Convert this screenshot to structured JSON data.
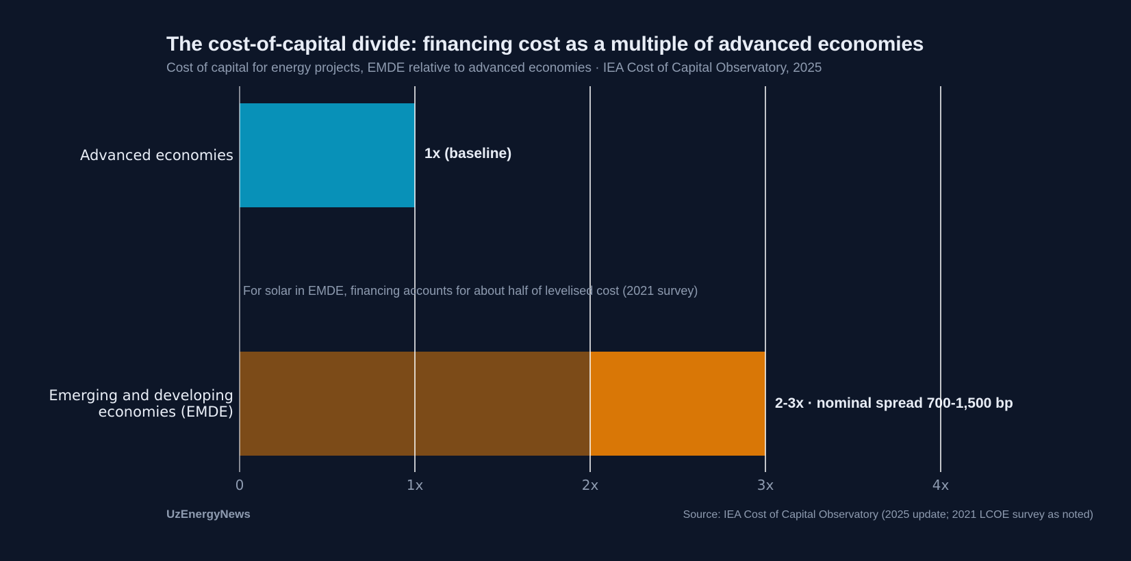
{
  "colors": {
    "background": "#0d1628",
    "advanced_bar": "#0891b8",
    "emde_low_bar": "#7c4b18",
    "emde_high_bar": "#d97706",
    "grid": "#ffffff",
    "text_primary": "#e8edf6",
    "text_muted": "#8e9bb0"
  },
  "footer": {
    "brand": "UzEnergyNews",
    "source": "Source: IEA Cost of Capital Observatory (2025 update; 2021 LCOE survey as noted)"
  },
  "chart_data": {
    "type": "bar",
    "orientation": "horizontal",
    "title": "The cost-of-capital divide: financing cost as a multiple of advanced economies",
    "subtitle": "Cost of capital for energy projects, EMDE relative to advanced economies · IEA Cost of Capital Observatory, 2025",
    "xlim": [
      0,
      4.8
    ],
    "x_ticks": [
      {
        "value": 0,
        "label": "0"
      },
      {
        "value": 1,
        "label": "1x"
      },
      {
        "value": 2,
        "label": "2x"
      },
      {
        "value": 3,
        "label": "3x"
      },
      {
        "value": 4,
        "label": "4x"
      }
    ],
    "grid": "vertical",
    "bars": [
      {
        "category": "Advanced economies",
        "category_lines": [
          "Advanced economies"
        ],
        "segments": [
          {
            "from": 0,
            "to": 1,
            "color": "#0891b8"
          }
        ],
        "value_label": "1x  (baseline)"
      },
      {
        "category": "Emerging and developing economies (EMDE)",
        "category_lines": [
          "Emerging and developing",
          "economies (EMDE)"
        ],
        "segments": [
          {
            "from": 0,
            "to": 2,
            "color": "#7c4b18"
          },
          {
            "from": 2,
            "to": 3,
            "color": "#d97706"
          }
        ],
        "value_label": "2-3x  · nominal spread 700-1,500 bp"
      }
    ],
    "annotation": "For solar in EMDE, financing accounts for about half of levelised cost (2021 survey)"
  }
}
